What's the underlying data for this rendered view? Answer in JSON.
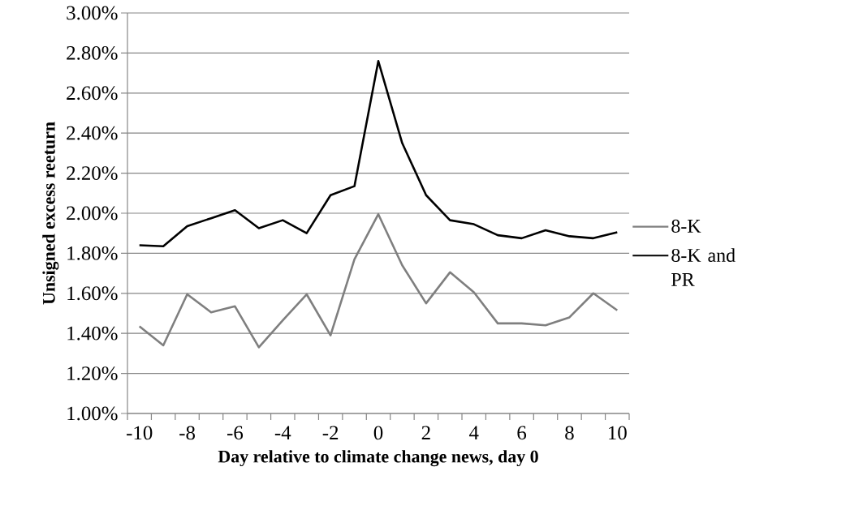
{
  "chart_data": {
    "type": "line",
    "xlabel": "Day relative to climate change news, day 0",
    "ylabel": "Unsigned excess reeturn",
    "categories": [
      "-10",
      null,
      "-8",
      null,
      "-6",
      null,
      "-4",
      null,
      "-2",
      null,
      "0",
      null,
      "2",
      null,
      "4",
      null,
      "6",
      null,
      "8",
      null,
      "10"
    ],
    "series": [
      {
        "name": "8-K",
        "color": "#7f7f7f",
        "values": [
          1.435,
          1.34,
          1.595,
          1.505,
          1.535,
          1.33,
          1.465,
          1.595,
          1.39,
          1.77,
          1.995,
          1.74,
          1.55,
          1.705,
          1.605,
          1.45,
          1.45,
          1.44,
          1.48,
          1.6,
          1.515
        ]
      },
      {
        "name": "8-K and PR",
        "color": "#000000",
        "values": [
          1.84,
          1.835,
          1.935,
          1.975,
          2.015,
          1.925,
          1.965,
          1.9,
          2.09,
          2.135,
          2.76,
          2.35,
          2.09,
          1.965,
          1.945,
          1.89,
          1.875,
          1.915,
          1.885,
          1.875,
          1.905
        ]
      }
    ],
    "ylim": [
      1,
      3
    ],
    "yticks": [
      {
        "value": 1,
        "label": "1.00%"
      },
      {
        "value": 1.2,
        "label": "1.20%"
      },
      {
        "value": 1.4,
        "label": "1.40%"
      },
      {
        "value": 1.6,
        "label": "1.60%"
      },
      {
        "value": 1.8,
        "label": "1.80%"
      },
      {
        "value": 2,
        "label": "2.00%"
      },
      {
        "value": 2.2,
        "label": "2.20%"
      },
      {
        "value": 2.4,
        "label": "2.40%"
      },
      {
        "value": 2.6,
        "label": "2.60%"
      },
      {
        "value": 2.8,
        "label": "2.80%"
      },
      {
        "value": 3,
        "label": "3.00%"
      }
    ],
    "grid": "y",
    "legend": "right",
    "marker": "none",
    "line_style": "solid"
  }
}
